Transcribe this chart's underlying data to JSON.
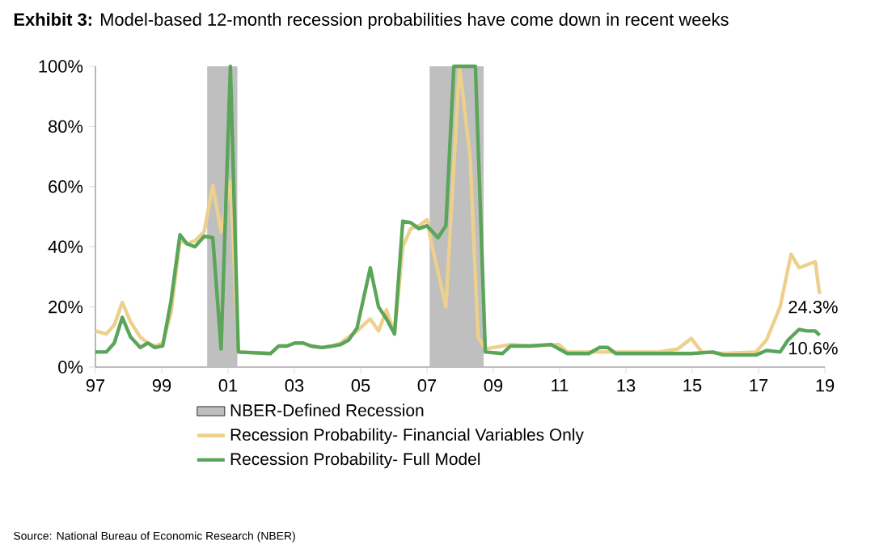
{
  "chart_data": {
    "type": "line",
    "title": "**Exhibit 3:** Model-based 12-month recession probabilities have come down in recent weeks",
    "annotations": [
      "Source: National Bureau of Economic Research (NBER)",
      {
        "text": "24.3%",
        "x": 2018.84,
        "y": 24.3
      },
      {
        "text": "10.6%",
        "x": 2018.84,
        "y": 10.6
      }
    ],
    "series": [
      {
        "name": "Recession Probability- Financial Variables Only",
        "color": "#ecd08c",
        "x": [
          1997.0,
          1997.33,
          1997.57,
          1997.81,
          1998.06,
          1998.35,
          1998.58,
          1998.79,
          1999.03,
          1999.28,
          1999.55,
          1999.76,
          2000.0,
          2000.28,
          2000.54,
          2000.79,
          2001.07,
          2001.31,
          2002.28,
          2002.53,
          2002.77,
          2003.02,
          2003.26,
          2003.5,
          2003.83,
          2004.15,
          2004.4,
          2004.64,
          2004.89,
          2005.29,
          2005.54,
          2005.78,
          2006.02,
          2006.27,
          2006.51,
          2006.76,
          2007.0,
          2007.16,
          2007.57,
          2007.98,
          2008.3,
          2008.54,
          2008.76,
          2009.52,
          2010.09,
          2010.98,
          2011.23,
          2013.99,
          2014.56,
          2014.97,
          2015.29,
          2015.94,
          2016.92,
          2017.24,
          2017.65,
          2017.98,
          2018.22,
          2018.71,
          2018.84
        ],
        "values": [
          12,
          11,
          14,
          21.5,
          15,
          10,
          8,
          7,
          8,
          18,
          42,
          41,
          42,
          45,
          60.5,
          45,
          62,
          5,
          4.5,
          7,
          7,
          8,
          8,
          7,
          6.5,
          7,
          8,
          10,
          12,
          16,
          12,
          19,
          11,
          40,
          46,
          47,
          49,
          40,
          20,
          100,
          70,
          10,
          6,
          7.5,
          7,
          7.5,
          5,
          5,
          6,
          9.5,
          5,
          4.5,
          5,
          9,
          20,
          37.5,
          33,
          35,
          24.3
        ]
      },
      {
        "name": "Recession Probability- Full Model",
        "color": "#5aa55a",
        "x": [
          1997.0,
          1997.33,
          1997.57,
          1997.81,
          1998.06,
          1998.35,
          1998.58,
          1998.79,
          1999.03,
          1999.28,
          1999.55,
          1999.76,
          2000.0,
          2000.28,
          2000.54,
          2000.79,
          2001.07,
          2001.31,
          2002.28,
          2002.53,
          2002.77,
          2003.02,
          2003.26,
          2003.5,
          2003.83,
          2004.15,
          2004.4,
          2004.64,
          2004.89,
          2005.29,
          2005.54,
          2005.78,
          2006.02,
          2006.27,
          2006.51,
          2006.76,
          2007.0,
          2007.33,
          2007.57,
          2007.81,
          2008.46,
          2008.76,
          2009.28,
          2009.52,
          2010.09,
          2010.74,
          2011.23,
          2011.88,
          2012.2,
          2012.45,
          2012.69,
          2013.34,
          2014.97,
          2015.62,
          2015.94,
          2016.92,
          2017.24,
          2017.65,
          2017.89,
          2018.22,
          2018.46,
          2018.71,
          2018.84
        ],
        "values": [
          5,
          5,
          8,
          16.5,
          10,
          6.5,
          8,
          6.5,
          7,
          22,
          44,
          41,
          40,
          43.5,
          43,
          6,
          100,
          5,
          4.5,
          7,
          7,
          8,
          8,
          7,
          6.5,
          7,
          7.5,
          9,
          13,
          33,
          20,
          16,
          11,
          48.5,
          48,
          46,
          47,
          43,
          47,
          100,
          100,
          5,
          4.5,
          7,
          7,
          7.5,
          4.5,
          4.5,
          6.5,
          6.5,
          4.5,
          4.5,
          4.5,
          5,
          4,
          4,
          5.5,
          5,
          9,
          12.5,
          12,
          12,
          10.6
        ]
      }
    ],
    "bands": [
      {
        "axis": "x",
        "from": 2000.37,
        "to": 2001.28,
        "label": "NBER-Defined Recession",
        "color": "#bfbfbf"
      },
      {
        "axis": "x",
        "from": 2007.08,
        "to": 2008.71,
        "color": "#bfbfbf"
      }
    ],
    "xlim": [
      1997,
      2019
    ],
    "xticks": [
      {
        "value": 1997,
        "label": "97"
      },
      {
        "value": 1999,
        "label": "99"
      },
      {
        "value": 2001,
        "label": "01"
      },
      {
        "value": 2003,
        "label": "03"
      },
      {
        "value": 2005,
        "label": "05"
      },
      {
        "value": 2007,
        "label": "07"
      },
      {
        "value": 2009,
        "label": "09"
      },
      {
        "value": 2011,
        "label": "11"
      },
      {
        "value": 2013,
        "label": "13"
      },
      {
        "value": 2015,
        "label": "15"
      },
      {
        "value": 2017,
        "label": "17"
      },
      {
        "value": 2019,
        "label": "19"
      }
    ],
    "ylim": [
      0,
      100
    ],
    "yticks": [
      {
        "value": 0,
        "label": "0%"
      },
      {
        "value": 20,
        "label": "20%"
      },
      {
        "value": 40,
        "label": "40%"
      },
      {
        "value": 60,
        "label": "60%"
      },
      {
        "value": 80,
        "label": "80%"
      },
      {
        "value": 100,
        "label": "100%"
      }
    ],
    "grid": false,
    "legend": "bottom",
    "marker": "none",
    "line_style": "solid"
  }
}
